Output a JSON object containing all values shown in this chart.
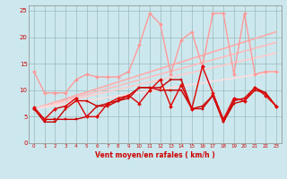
{
  "xlabel": "Vent moyen/en rafales ( km/h )",
  "xlim": [
    -0.5,
    23.5
  ],
  "ylim": [
    0,
    26
  ],
  "yticks": [
    0,
    5,
    10,
    15,
    20,
    25
  ],
  "xticks": [
    0,
    1,
    2,
    3,
    4,
    5,
    6,
    7,
    8,
    9,
    10,
    11,
    12,
    13,
    14,
    15,
    16,
    17,
    18,
    19,
    20,
    21,
    22,
    23
  ],
  "bg_color": "#cce8ee",
  "grid_color": "#99bbbb",
  "series": [
    {
      "x": [
        0,
        23
      ],
      "y": [
        6.5,
        21.0
      ],
      "color": "#ffaaaa",
      "lw": 1.2,
      "marker": null,
      "ms": 0
    },
    {
      "x": [
        0,
        23
      ],
      "y": [
        6.5,
        19.0
      ],
      "color": "#ffbbbb",
      "lw": 1.2,
      "marker": null,
      "ms": 0
    },
    {
      "x": [
        0,
        23
      ],
      "y": [
        6.5,
        17.0
      ],
      "color": "#ffcccc",
      "lw": 1.2,
      "marker": null,
      "ms": 0
    },
    {
      "x": [
        0,
        23
      ],
      "y": [
        6.5,
        13.5
      ],
      "color": "#ffdddd",
      "lw": 1.2,
      "marker": null,
      "ms": 0
    },
    {
      "x": [
        0,
        1,
        2,
        3,
        4,
        5,
        6,
        7,
        8,
        9,
        10,
        11,
        12,
        13,
        14,
        15,
        16,
        17,
        18,
        19,
        20,
        21,
        22,
        23
      ],
      "y": [
        13.5,
        9.5,
        9.5,
        9.5,
        12.0,
        13.0,
        12.5,
        12.5,
        12.5,
        13.5,
        18.5,
        24.5,
        22.5,
        13.0,
        19.5,
        21.0,
        14.5,
        24.5,
        24.5,
        13.0,
        24.5,
        13.0,
        13.5,
        13.5
      ],
      "color": "#ff9999",
      "lw": 1.0,
      "marker": "D",
      "ms": 2.0
    },
    {
      "x": [
        0,
        1,
        2,
        3,
        4,
        5,
        6,
        7,
        8,
        9,
        10,
        11,
        12,
        13,
        14,
        15,
        16,
        17,
        18,
        19,
        20,
        21,
        22,
        23
      ],
      "y": [
        6.5,
        4.0,
        4.0,
        6.5,
        8.0,
        8.0,
        7.0,
        7.0,
        8.0,
        8.5,
        10.5,
        10.5,
        10.5,
        12.0,
        12.0,
        6.5,
        6.5,
        9.0,
        4.0,
        8.0,
        8.5,
        10.5,
        9.5,
        7.0
      ],
      "color": "#cc0000",
      "lw": 1.0,
      "marker": "s",
      "ms": 2.0
    },
    {
      "x": [
        0,
        1,
        2,
        3,
        4,
        5,
        6,
        7,
        8,
        9,
        10,
        11,
        12,
        13,
        14,
        15,
        16,
        17,
        18,
        19,
        20,
        21,
        22,
        23
      ],
      "y": [
        6.5,
        4.5,
        4.5,
        4.5,
        4.5,
        5.0,
        7.0,
        7.5,
        8.0,
        9.0,
        10.5,
        10.5,
        10.0,
        10.0,
        10.0,
        6.5,
        7.0,
        9.0,
        4.0,
        7.5,
        8.0,
        10.0,
        9.5,
        7.0
      ],
      "color": "#cc0000",
      "lw": 1.0,
      "marker": "s",
      "ms": 2.0
    },
    {
      "x": [
        0,
        1,
        2,
        3,
        4,
        5,
        6,
        7,
        8,
        9,
        10,
        11,
        12,
        13,
        14,
        15,
        16,
        17,
        18,
        19,
        20,
        21,
        22,
        23
      ],
      "y": [
        6.8,
        4.5,
        6.5,
        7.0,
        8.5,
        5.0,
        5.0,
        7.5,
        8.5,
        9.0,
        7.5,
        10.0,
        12.0,
        7.0,
        11.0,
        6.5,
        14.5,
        9.5,
        4.5,
        8.5,
        8.0,
        10.5,
        9.0,
        7.0
      ],
      "color": "#dd0000",
      "lw": 1.0,
      "marker": "D",
      "ms": 2.0
    }
  ]
}
